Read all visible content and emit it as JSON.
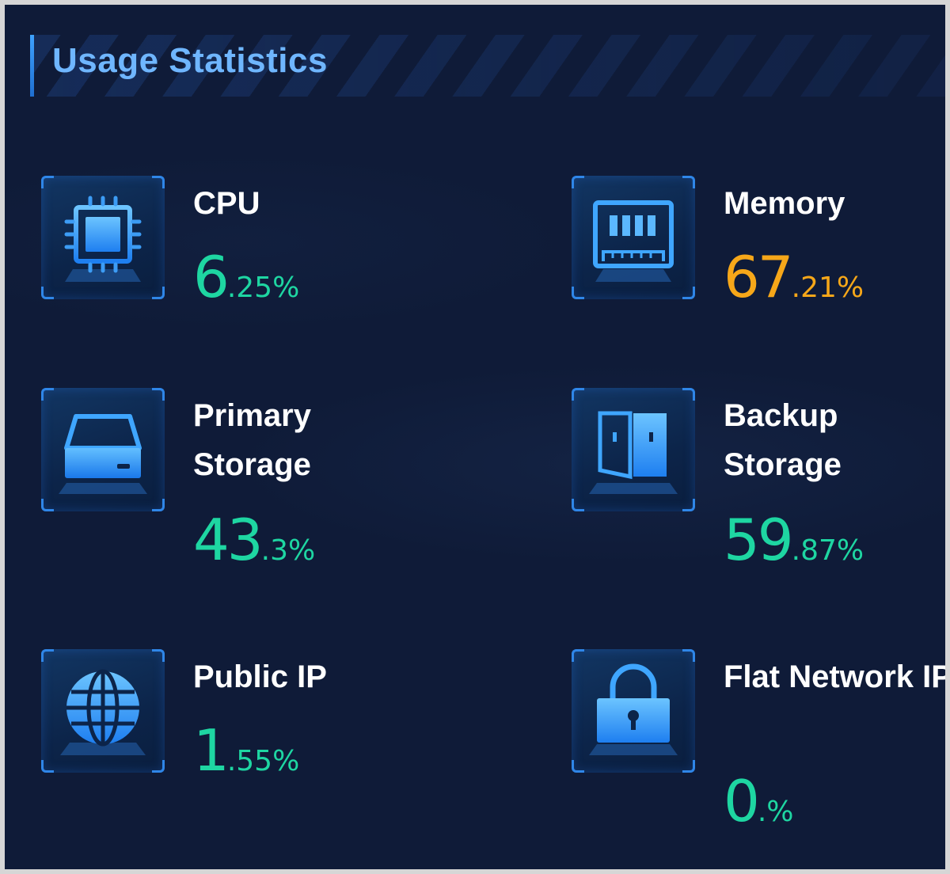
{
  "panel": {
    "title": "Usage Statistics"
  },
  "stats": [
    {
      "id": "cpu",
      "label": "CPU",
      "int": "6",
      "dec": ".25%",
      "percent": 6.25,
      "color": "#1ed6a2",
      "icon": "cpu-chip-icon"
    },
    {
      "id": "memory",
      "label": "Memory",
      "int": "67",
      "dec": ".21%",
      "percent": 67.21,
      "color": "#f6a719",
      "icon": "memory-module-icon"
    },
    {
      "id": "primary-storage",
      "label": "Primary Storage",
      "int": "43",
      "dec": ".3%",
      "percent": 43.3,
      "color": "#1ed6a2",
      "icon": "hard-drive-icon"
    },
    {
      "id": "backup-storage",
      "label": "Backup Storage",
      "int": "59",
      "dec": ".87%",
      "percent": 59.87,
      "color": "#1ed6a2",
      "icon": "storage-cabinet-icon"
    },
    {
      "id": "public-ip",
      "label": "Public IP",
      "int": "1",
      "dec": ".55%",
      "percent": 1.55,
      "color": "#1ed6a2",
      "icon": "globe-icon"
    },
    {
      "id": "flat-network-ip",
      "label": "Flat Network IP",
      "int": "0",
      "dec": ".%",
      "percent": 0,
      "color": "#1ed6a2",
      "icon": "padlock-icon"
    }
  ]
}
